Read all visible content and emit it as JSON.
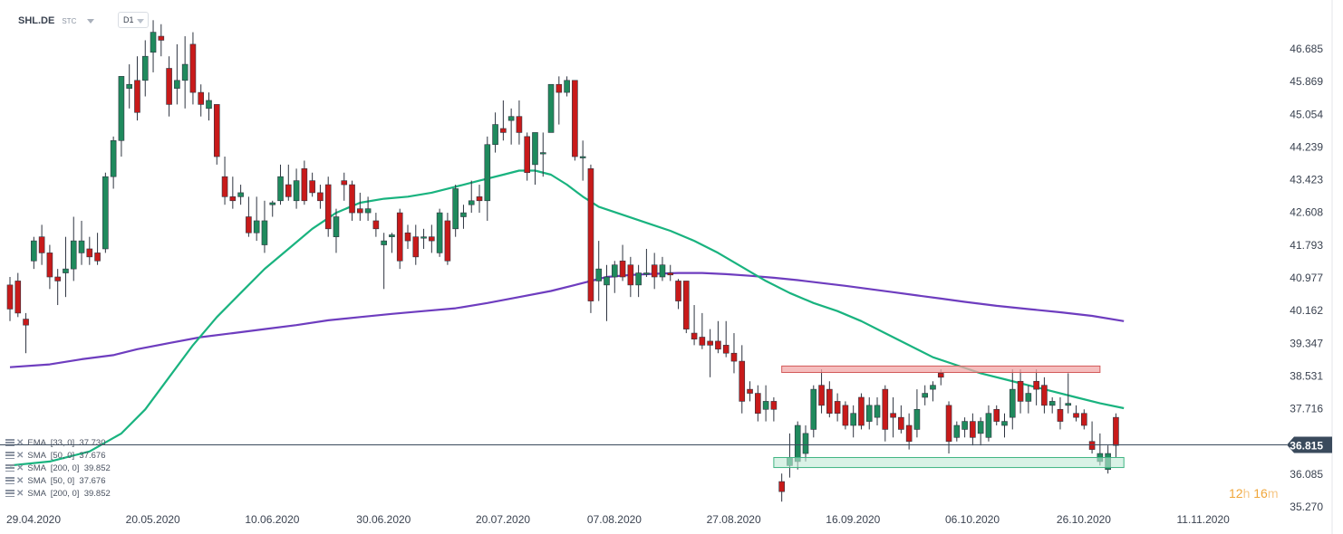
{
  "header": {
    "symbol": "SHL.DE",
    "source": "STC",
    "timeframe": "D1"
  },
  "indicators": [
    {
      "text": "EMA  [33, 0]  37.730"
    },
    {
      "text": "SMA  [50, 0]  37.676"
    },
    {
      "text": "SMA  [200, 0]  39.852"
    },
    {
      "text": "SMA  [50, 0]  37.676"
    },
    {
      "text": "SMA  [200, 0]  39.852"
    }
  ],
  "countdown": {
    "h_value": "12",
    "h_unit": "h",
    "m_value": "16",
    "m_unit": "m"
  },
  "colors": {
    "up": "#1f8a5d",
    "down": "#c81a1a",
    "ema": "#19b37f",
    "sma200": "#6e3dbf",
    "price_line": "#3a4a5c",
    "resistance_fill": "#f2a8a8",
    "support_fill": "#bfe9d6"
  },
  "chart_data": {
    "type": "candlestick",
    "y_ticks": [
      "46.685",
      "45.869",
      "45.054",
      "44.239",
      "43.423",
      "42.608",
      "41.793",
      "40.977",
      "40.162",
      "39.347",
      "38.531",
      "37.716",
      "36.085",
      "35.270"
    ],
    "y_tick_values": [
      46.685,
      45.869,
      45.054,
      44.239,
      43.423,
      42.608,
      41.793,
      40.977,
      40.162,
      39.347,
      38.531,
      37.716,
      36.085,
      35.27
    ],
    "ylim": [
      35.0,
      47.8
    ],
    "x_ticks": [
      "29.04.2020",
      "20.05.2020",
      "10.06.2020",
      "30.06.2020",
      "20.07.2020",
      "07.08.2020",
      "27.08.2020",
      "16.09.2020",
      "06.10.2020",
      "26.10.2020",
      "11.11.2020"
    ],
    "x_tick_index": [
      0,
      15,
      30,
      44,
      59,
      73,
      88,
      103,
      118,
      132,
      147
    ],
    "current_price": {
      "value": 36.815,
      "label": "36.815"
    },
    "zones": [
      {
        "name": "resistance",
        "y_low": 38.62,
        "y_high": 38.78,
        "x_start": 97,
        "x_end": 137
      },
      {
        "name": "support",
        "y_low": 36.25,
        "y_high": 36.5,
        "x_start": 96,
        "x_end": 140
      }
    ],
    "candles": [
      {
        "o": 40.8,
        "h": 41.0,
        "l": 39.9,
        "c": 40.2
      },
      {
        "o": 40.9,
        "h": 41.1,
        "l": 40.0,
        "c": 40.1
      },
      {
        "o": 39.95,
        "h": 40.1,
        "l": 39.1,
        "c": 39.8
      },
      {
        "o": 41.4,
        "h": 42.0,
        "l": 41.2,
        "c": 41.9
      },
      {
        "o": 42.0,
        "h": 42.3,
        "l": 41.3,
        "c": 41.6
      },
      {
        "o": 41.6,
        "h": 41.8,
        "l": 40.7,
        "c": 41.0
      },
      {
        "o": 41.0,
        "h": 41.2,
        "l": 40.3,
        "c": 40.9
      },
      {
        "o": 41.1,
        "h": 42.0,
        "l": 40.5,
        "c": 41.2
      },
      {
        "o": 41.2,
        "h": 42.5,
        "l": 40.9,
        "c": 41.9
      },
      {
        "o": 41.6,
        "h": 42.4,
        "l": 41.3,
        "c": 41.9
      },
      {
        "o": 41.7,
        "h": 42.0,
        "l": 41.3,
        "c": 41.5
      },
      {
        "o": 41.6,
        "h": 42.1,
        "l": 41.3,
        "c": 41.4
      },
      {
        "o": 41.7,
        "h": 43.6,
        "l": 41.6,
        "c": 43.5
      },
      {
        "o": 43.5,
        "h": 44.5,
        "l": 43.2,
        "c": 44.4
      },
      {
        "o": 44.4,
        "h": 46.0,
        "l": 44.0,
        "c": 46.0
      },
      {
        "o": 45.7,
        "h": 46.3,
        "l": 45.2,
        "c": 45.8
      },
      {
        "o": 45.9,
        "h": 46.5,
        "l": 44.9,
        "c": 45.1
      },
      {
        "o": 45.9,
        "h": 46.9,
        "l": 45.5,
        "c": 46.5
      },
      {
        "o": 46.6,
        "h": 47.4,
        "l": 46.1,
        "c": 47.1
      },
      {
        "o": 47.0,
        "h": 47.3,
        "l": 46.5,
        "c": 46.9
      },
      {
        "o": 46.2,
        "h": 46.5,
        "l": 45.0,
        "c": 45.3
      },
      {
        "o": 45.7,
        "h": 46.8,
        "l": 45.3,
        "c": 45.9
      },
      {
        "o": 45.9,
        "h": 47.0,
        "l": 45.2,
        "c": 46.3
      },
      {
        "o": 46.8,
        "h": 47.1,
        "l": 45.3,
        "c": 45.6
      },
      {
        "o": 45.6,
        "h": 45.8,
        "l": 45.0,
        "c": 45.3
      },
      {
        "o": 45.2,
        "h": 45.6,
        "l": 44.9,
        "c": 45.4
      },
      {
        "o": 45.3,
        "h": 45.3,
        "l": 43.8,
        "c": 44.0
      },
      {
        "o": 43.5,
        "h": 44.0,
        "l": 42.8,
        "c": 43.0
      },
      {
        "o": 43.0,
        "h": 43.5,
        "l": 42.7,
        "c": 42.9
      },
      {
        "o": 43.0,
        "h": 43.3,
        "l": 42.8,
        "c": 43.1
      },
      {
        "o": 42.5,
        "h": 43.0,
        "l": 42.0,
        "c": 42.1
      },
      {
        "o": 42.1,
        "h": 43.0,
        "l": 41.9,
        "c": 42.4
      },
      {
        "o": 41.8,
        "h": 42.9,
        "l": 41.6,
        "c": 42.4
      },
      {
        "o": 42.8,
        "h": 42.9,
        "l": 42.5,
        "c": 42.85
      },
      {
        "o": 42.9,
        "h": 43.8,
        "l": 42.8,
        "c": 43.5
      },
      {
        "o": 43.3,
        "h": 43.8,
        "l": 42.9,
        "c": 43.0
      },
      {
        "o": 42.9,
        "h": 43.7,
        "l": 42.7,
        "c": 43.4
      },
      {
        "o": 43.7,
        "h": 43.9,
        "l": 42.8,
        "c": 42.9
      },
      {
        "o": 43.4,
        "h": 43.6,
        "l": 43.0,
        "c": 43.1
      },
      {
        "o": 43.1,
        "h": 43.3,
        "l": 42.7,
        "c": 42.9
      },
      {
        "o": 43.3,
        "h": 43.5,
        "l": 42.0,
        "c": 42.2
      },
      {
        "o": 42.0,
        "h": 42.7,
        "l": 41.6,
        "c": 42.5
      },
      {
        "o": 43.4,
        "h": 43.6,
        "l": 42.9,
        "c": 43.3
      },
      {
        "o": 43.3,
        "h": 43.4,
        "l": 42.4,
        "c": 42.6
      },
      {
        "o": 42.7,
        "h": 43.1,
        "l": 42.4,
        "c": 42.6
      },
      {
        "o": 42.6,
        "h": 43.0,
        "l": 42.4,
        "c": 42.7
      },
      {
        "o": 42.4,
        "h": 42.6,
        "l": 42.0,
        "c": 42.2
      },
      {
        "o": 41.8,
        "h": 42.1,
        "l": 40.7,
        "c": 41.9
      },
      {
        "o": 42.0,
        "h": 42.1,
        "l": 41.6,
        "c": 42.05
      },
      {
        "o": 42.6,
        "h": 42.7,
        "l": 41.2,
        "c": 41.4
      },
      {
        "o": 42.1,
        "h": 42.3,
        "l": 41.7,
        "c": 41.9
      },
      {
        "o": 42.0,
        "h": 42.3,
        "l": 41.3,
        "c": 41.5
      },
      {
        "o": 42.0,
        "h": 42.2,
        "l": 41.7,
        "c": 42.0
      },
      {
        "o": 42.0,
        "h": 42.3,
        "l": 41.6,
        "c": 41.9
      },
      {
        "o": 41.6,
        "h": 42.7,
        "l": 41.5,
        "c": 42.6
      },
      {
        "o": 42.4,
        "h": 42.6,
        "l": 41.3,
        "c": 41.4
      },
      {
        "o": 42.2,
        "h": 43.3,
        "l": 42.0,
        "c": 43.2
      },
      {
        "o": 42.5,
        "h": 42.8,
        "l": 42.2,
        "c": 42.6
      },
      {
        "o": 42.8,
        "h": 43.4,
        "l": 42.6,
        "c": 42.9
      },
      {
        "o": 43.0,
        "h": 43.3,
        "l": 42.6,
        "c": 42.9
      },
      {
        "o": 42.9,
        "h": 44.5,
        "l": 42.4,
        "c": 44.3
      },
      {
        "o": 44.3,
        "h": 45.1,
        "l": 44.1,
        "c": 44.8
      },
      {
        "o": 44.7,
        "h": 45.4,
        "l": 44.4,
        "c": 44.6
      },
      {
        "o": 44.9,
        "h": 45.2,
        "l": 44.3,
        "c": 45.0
      },
      {
        "o": 45.0,
        "h": 45.4,
        "l": 44.3,
        "c": 44.6
      },
      {
        "o": 44.5,
        "h": 44.6,
        "l": 43.4,
        "c": 43.6
      },
      {
        "o": 43.8,
        "h": 44.5,
        "l": 43.3,
        "c": 44.6
      },
      {
        "o": 44.1,
        "h": 44.6,
        "l": 43.5,
        "c": 44.1
      },
      {
        "o": 44.6,
        "h": 45.8,
        "l": 44.6,
        "c": 45.8
      },
      {
        "o": 45.8,
        "h": 46.0,
        "l": 44.8,
        "c": 45.6
      },
      {
        "o": 45.6,
        "h": 46.0,
        "l": 45.5,
        "c": 45.9
      },
      {
        "o": 45.9,
        "h": 45.9,
        "l": 43.9,
        "c": 44.0
      },
      {
        "o": 44.0,
        "h": 44.4,
        "l": 43.4,
        "c": 44.0
      },
      {
        "o": 43.7,
        "h": 43.8,
        "l": 40.1,
        "c": 40.4
      },
      {
        "o": 40.9,
        "h": 41.9,
        "l": 40.4,
        "c": 41.2
      },
      {
        "o": 40.8,
        "h": 41.3,
        "l": 39.9,
        "c": 41.0
      },
      {
        "o": 41.0,
        "h": 41.4,
        "l": 40.6,
        "c": 41.3
      },
      {
        "o": 41.4,
        "h": 41.8,
        "l": 40.9,
        "c": 41.0
      },
      {
        "o": 41.3,
        "h": 41.5,
        "l": 40.5,
        "c": 40.8
      },
      {
        "o": 40.8,
        "h": 41.3,
        "l": 40.5,
        "c": 41.1
      },
      {
        "o": 41.1,
        "h": 41.7,
        "l": 41.0,
        "c": 41.1
      },
      {
        "o": 41.3,
        "h": 41.6,
        "l": 40.7,
        "c": 41.0
      },
      {
        "o": 41.0,
        "h": 41.5,
        "l": 40.9,
        "c": 41.3
      },
      {
        "o": 41.1,
        "h": 41.3,
        "l": 40.9,
        "c": 41.05
      },
      {
        "o": 40.9,
        "h": 40.95,
        "l": 40.2,
        "c": 40.4
      },
      {
        "o": 40.9,
        "h": 40.9,
        "l": 39.6,
        "c": 39.7
      },
      {
        "o": 39.6,
        "h": 40.3,
        "l": 39.3,
        "c": 39.45
      },
      {
        "o": 39.5,
        "h": 40.1,
        "l": 39.2,
        "c": 39.3
      },
      {
        "o": 39.4,
        "h": 39.7,
        "l": 38.5,
        "c": 39.3
      },
      {
        "o": 39.4,
        "h": 39.9,
        "l": 39.1,
        "c": 39.2
      },
      {
        "o": 39.3,
        "h": 39.9,
        "l": 39.0,
        "c": 39.1
      },
      {
        "o": 39.1,
        "h": 39.6,
        "l": 38.6,
        "c": 38.9
      },
      {
        "o": 38.9,
        "h": 39.3,
        "l": 37.6,
        "c": 37.9
      },
      {
        "o": 38.2,
        "h": 38.4,
        "l": 37.9,
        "c": 38.1
      },
      {
        "o": 38.1,
        "h": 38.3,
        "l": 37.4,
        "c": 37.6
      },
      {
        "o": 37.7,
        "h": 38.3,
        "l": 37.4,
        "c": 37.9
      },
      {
        "o": 37.9,
        "h": 38.0,
        "l": 37.4,
        "c": 37.7
      },
      {
        "o": 35.9,
        "h": 36.1,
        "l": 35.4,
        "c": 35.65
      },
      {
        "o": 36.3,
        "h": 37.1,
        "l": 36.0,
        "c": 36.5
      },
      {
        "o": 36.4,
        "h": 37.4,
        "l": 36.2,
        "c": 37.3
      },
      {
        "o": 36.6,
        "h": 37.3,
        "l": 36.4,
        "c": 37.1
      },
      {
        "o": 37.2,
        "h": 38.3,
        "l": 37.0,
        "c": 38.2
      },
      {
        "o": 38.3,
        "h": 38.7,
        "l": 37.6,
        "c": 37.8
      },
      {
        "o": 38.2,
        "h": 38.4,
        "l": 37.5,
        "c": 37.6
      },
      {
        "o": 37.9,
        "h": 38.1,
        "l": 37.4,
        "c": 37.6
      },
      {
        "o": 37.8,
        "h": 37.9,
        "l": 37.2,
        "c": 37.3
      },
      {
        "o": 37.3,
        "h": 37.8,
        "l": 37.0,
        "c": 37.6
      },
      {
        "o": 38.0,
        "h": 38.1,
        "l": 37.2,
        "c": 37.3
      },
      {
        "o": 37.4,
        "h": 38.0,
        "l": 37.2,
        "c": 37.8
      },
      {
        "o": 37.5,
        "h": 38.0,
        "l": 37.3,
        "c": 37.8
      },
      {
        "o": 38.2,
        "h": 38.3,
        "l": 36.9,
        "c": 37.2
      },
      {
        "o": 37.6,
        "h": 38.0,
        "l": 37.0,
        "c": 37.5
      },
      {
        "o": 37.5,
        "h": 37.8,
        "l": 37.1,
        "c": 37.2
      },
      {
        "o": 37.3,
        "h": 37.6,
        "l": 36.7,
        "c": 36.9
      },
      {
        "o": 37.2,
        "h": 38.2,
        "l": 37.0,
        "c": 37.7
      },
      {
        "o": 38.0,
        "h": 38.3,
        "l": 37.8,
        "c": 38.1
      },
      {
        "o": 38.2,
        "h": 38.4,
        "l": 37.9,
        "c": 38.3
      },
      {
        "o": 38.6,
        "h": 38.7,
        "l": 38.3,
        "c": 38.5
      },
      {
        "o": 37.8,
        "h": 37.9,
        "l": 36.6,
        "c": 36.9
      },
      {
        "o": 37.0,
        "h": 37.4,
        "l": 36.9,
        "c": 37.3
      },
      {
        "o": 37.2,
        "h": 37.5,
        "l": 37.0,
        "c": 37.4
      },
      {
        "o": 37.4,
        "h": 37.6,
        "l": 36.8,
        "c": 37.0
      },
      {
        "o": 37.1,
        "h": 37.5,
        "l": 36.8,
        "c": 37.4
      },
      {
        "o": 37.0,
        "h": 37.8,
        "l": 36.9,
        "c": 37.6
      },
      {
        "o": 37.7,
        "h": 37.8,
        "l": 37.3,
        "c": 37.4
      },
      {
        "o": 37.3,
        "h": 37.6,
        "l": 37.0,
        "c": 37.4
      },
      {
        "o": 37.5,
        "h": 38.7,
        "l": 37.2,
        "c": 38.2
      },
      {
        "o": 38.4,
        "h": 38.7,
        "l": 37.6,
        "c": 37.9
      },
      {
        "o": 37.9,
        "h": 38.3,
        "l": 37.6,
        "c": 38.1
      },
      {
        "o": 38.4,
        "h": 38.7,
        "l": 37.8,
        "c": 38.2
      },
      {
        "o": 38.3,
        "h": 38.5,
        "l": 37.6,
        "c": 37.8
      },
      {
        "o": 37.8,
        "h": 38.0,
        "l": 37.6,
        "c": 37.9
      },
      {
        "o": 37.7,
        "h": 38.0,
        "l": 37.2,
        "c": 37.4
      },
      {
        "o": 37.8,
        "h": 38.6,
        "l": 37.6,
        "c": 37.85
      },
      {
        "o": 37.6,
        "h": 37.8,
        "l": 37.4,
        "c": 37.5
      },
      {
        "o": 37.6,
        "h": 37.7,
        "l": 37.2,
        "c": 37.3
      },
      {
        "o": 36.9,
        "h": 37.4,
        "l": 36.6,
        "c": 36.7
      },
      {
        "o": 36.4,
        "h": 37.1,
        "l": 36.3,
        "c": 36.6
      },
      {
        "o": 36.2,
        "h": 36.8,
        "l": 36.1,
        "c": 36.6
      },
      {
        "o": 37.5,
        "h": 37.6,
        "l": 36.5,
        "c": 36.8
      }
    ],
    "ema_33": [
      [
        0,
        36.3
      ],
      [
        5,
        36.4
      ],
      [
        10,
        36.65
      ],
      [
        14,
        37.1
      ],
      [
        17,
        37.7
      ],
      [
        20,
        38.5
      ],
      [
        23,
        39.3
      ],
      [
        26,
        40.0
      ],
      [
        29,
        40.6
      ],
      [
        32,
        41.2
      ],
      [
        35,
        41.7
      ],
      [
        38,
        42.2
      ],
      [
        41,
        42.6
      ],
      [
        44,
        42.85
      ],
      [
        47,
        42.95
      ],
      [
        50,
        43.0
      ],
      [
        53,
        43.1
      ],
      [
        56,
        43.25
      ],
      [
        59,
        43.4
      ],
      [
        62,
        43.55
      ],
      [
        64,
        43.65
      ],
      [
        66,
        43.65
      ],
      [
        68,
        43.55
      ],
      [
        70,
        43.3
      ],
      [
        72,
        43.0
      ],
      [
        74,
        42.75
      ],
      [
        77,
        42.55
      ],
      [
        80,
        42.35
      ],
      [
        83,
        42.15
      ],
      [
        86,
        41.9
      ],
      [
        89,
        41.6
      ],
      [
        92,
        41.25
      ],
      [
        95,
        40.9
      ],
      [
        98,
        40.6
      ],
      [
        101,
        40.35
      ],
      [
        104,
        40.15
      ],
      [
        107,
        39.9
      ],
      [
        110,
        39.6
      ],
      [
        113,
        39.3
      ],
      [
        116,
        39.0
      ],
      [
        119,
        38.8
      ],
      [
        122,
        38.6
      ],
      [
        125,
        38.45
      ],
      [
        128,
        38.3
      ],
      [
        131,
        38.15
      ],
      [
        134,
        38.0
      ],
      [
        137,
        37.85
      ],
      [
        140,
        37.73
      ]
    ],
    "sma_200": [
      [
        0,
        38.75
      ],
      [
        5,
        38.82
      ],
      [
        9,
        38.95
      ],
      [
        13,
        39.05
      ],
      [
        16,
        39.2
      ],
      [
        20,
        39.35
      ],
      [
        24,
        39.5
      ],
      [
        28,
        39.6
      ],
      [
        32,
        39.7
      ],
      [
        36,
        39.8
      ],
      [
        40,
        39.92
      ],
      [
        44,
        40.0
      ],
      [
        48,
        40.08
      ],
      [
        52,
        40.15
      ],
      [
        56,
        40.22
      ],
      [
        60,
        40.35
      ],
      [
        64,
        40.5
      ],
      [
        68,
        40.65
      ],
      [
        71,
        40.8
      ],
      [
        75,
        41.0
      ],
      [
        78,
        41.05
      ],
      [
        81,
        41.08
      ],
      [
        84,
        41.1
      ],
      [
        87,
        41.1
      ],
      [
        90,
        41.07
      ],
      [
        93,
        41.03
      ],
      [
        96,
        40.98
      ],
      [
        99,
        40.92
      ],
      [
        102,
        40.85
      ],
      [
        105,
        40.78
      ],
      [
        108,
        40.7
      ],
      [
        111,
        40.62
      ],
      [
        114,
        40.54
      ],
      [
        117,
        40.46
      ],
      [
        120,
        40.38
      ],
      [
        124,
        40.28
      ],
      [
        128,
        40.2
      ],
      [
        132,
        40.12
      ],
      [
        136,
        40.03
      ],
      [
        140,
        39.9
      ]
    ]
  }
}
